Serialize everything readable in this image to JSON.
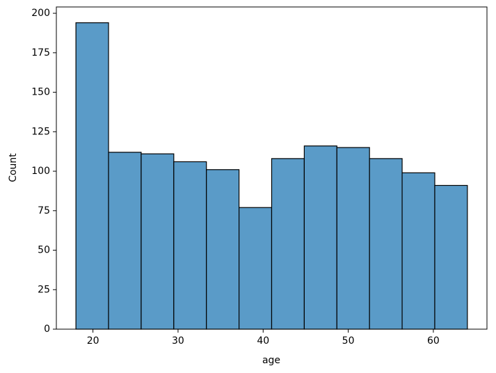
{
  "chart_data": {
    "type": "histogram",
    "xlabel": "age",
    "ylabel": "Count",
    "bins": [
      18,
      21.833,
      25.667,
      29.5,
      33.333,
      37.167,
      41,
      44.833,
      48.667,
      52.5,
      56.333,
      60.167,
      64
    ],
    "counts": [
      194,
      112,
      111,
      106,
      101,
      77,
      108,
      116,
      115,
      108,
      99,
      91
    ],
    "color": "#5a9bc8",
    "edgecolor": "#000000",
    "xlim": [
      15.7,
      66.3
    ],
    "xticks": [
      20,
      30,
      40,
      50,
      60
    ],
    "ylim": [
      0,
      204
    ],
    "yticks": [
      0,
      25,
      50,
      75,
      100,
      125,
      150,
      175,
      200
    ],
    "grid": false
  }
}
